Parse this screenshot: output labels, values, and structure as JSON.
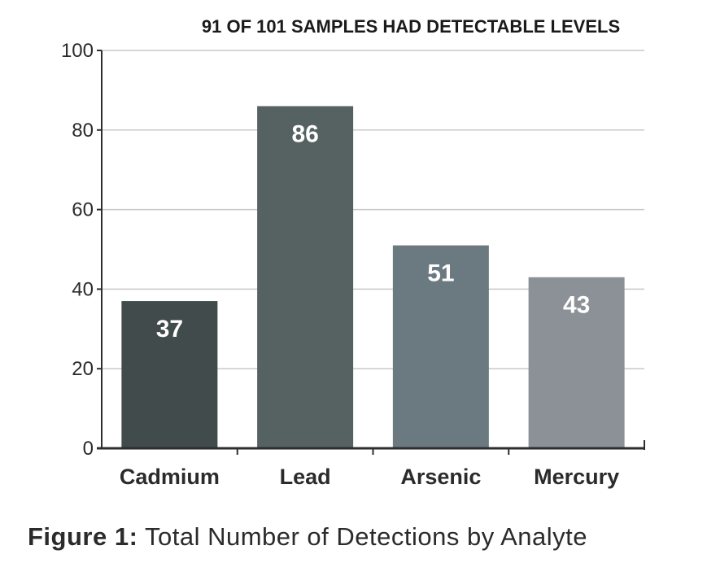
{
  "chart_data": {
    "type": "bar",
    "title": "91 OF 101 SAMPLES HAD DETECTABLE LEVELS",
    "categories": [
      "Cadmium",
      "Lead",
      "Arsenic",
      "Mercury"
    ],
    "values": [
      37,
      86,
      51,
      43
    ],
    "data_labels": [
      "37",
      "86",
      "51",
      "43"
    ],
    "bar_colors": [
      "#414b4b",
      "#566261",
      "#6b7a80",
      "#8b9196"
    ],
    "ylim": [
      0,
      100
    ],
    "yticks": [
      0,
      20,
      40,
      60,
      80,
      100
    ],
    "ytick_labels": [
      "0",
      "20",
      "40",
      "60",
      "80",
      "100"
    ],
    "grid": true,
    "xlabel": "",
    "ylabel": ""
  },
  "caption": {
    "label": "Figure 1:",
    "text": "Total Number of Detections by Analyte"
  },
  "colors": {
    "gridline": "#c9c9c9",
    "axis": "#2e2e2e"
  }
}
